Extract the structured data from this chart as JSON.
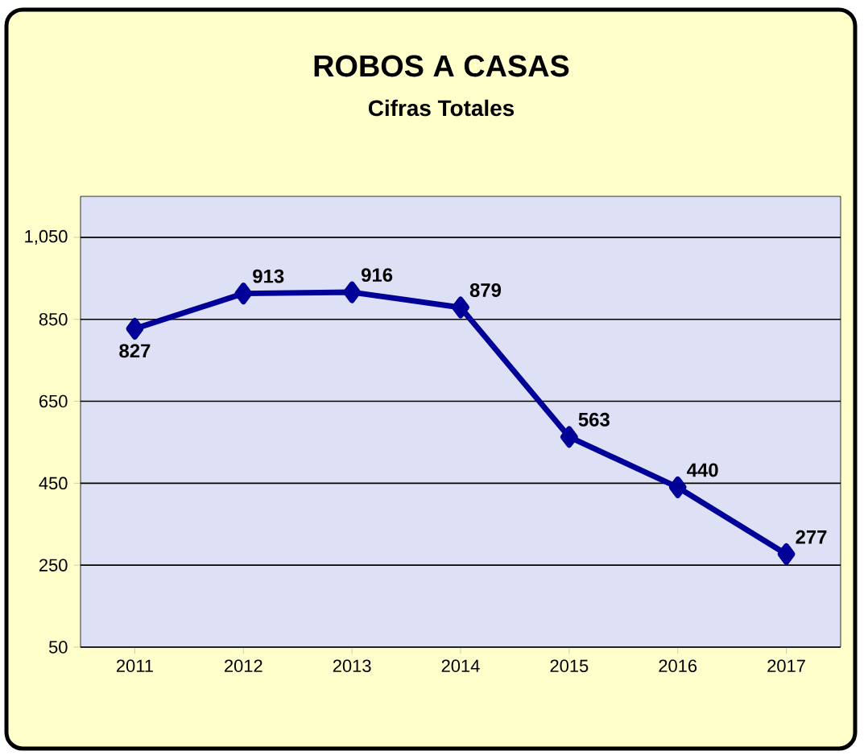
{
  "chart_data": {
    "type": "line",
    "title": "ROBOS A CASAS",
    "subtitle": "Cifras Totales",
    "categories": [
      "2011",
      "2012",
      "2013",
      "2014",
      "2015",
      "2016",
      "2017"
    ],
    "values": [
      827,
      913,
      916,
      879,
      563,
      440,
      277
    ],
    "color": "#000099",
    "ylim": [
      50,
      1150
    ],
    "yticks": [
      50,
      250,
      450,
      650,
      850,
      {
        "value": 1050,
        "label": "1,050"
      }
    ],
    "grid": "y",
    "marker": "diamond",
    "line_style": "solid",
    "data_labels": true
  }
}
